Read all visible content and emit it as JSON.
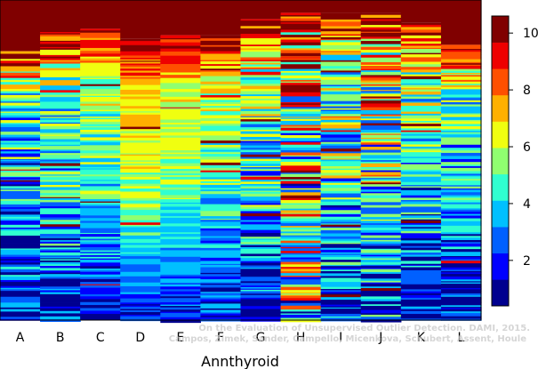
{
  "chart_data": {
    "type": "heatmap",
    "xlabel": "Annthyroid",
    "categories": [
      "A",
      "B",
      "C",
      "D",
      "E",
      "F",
      "G",
      "H",
      "I",
      "J",
      "K",
      "L"
    ],
    "colorbar": {
      "range": [
        0.4,
        10.6
      ],
      "ticks": [
        2,
        4,
        6,
        8,
        10
      ],
      "tick_labels": [
        "2",
        "4",
        "6",
        "8",
        "10"
      ],
      "colors": [
        "#00008F",
        "#0000FF",
        "#0060FF",
        "#00C0FF",
        "#30FFD0",
        "#90FF70",
        "#F0FF10",
        "#FFB000",
        "#FF5000",
        "#EE0000",
        "#800000"
      ]
    },
    "column_profiles": [
      {
        "name": "A",
        "top_rank": 9.2,
        "start": 0.16,
        "mid_rank": 3.0,
        "bottom_rank": 1.2,
        "noise": 2.5,
        "redness": 0.05
      },
      {
        "name": "B",
        "top_rank": 9.8,
        "start": 0.1,
        "mid_rank": 3.8,
        "bottom_rank": 1.3,
        "noise": 2.4,
        "redness": 0.07
      },
      {
        "name": "C",
        "top_rank": 9.8,
        "start": 0.09,
        "mid_rank": 4.5,
        "bottom_rank": 1.5,
        "noise": 1.7,
        "redness": 0.05
      },
      {
        "name": "D",
        "top_rank": 9.9,
        "start": 0.12,
        "mid_rank": 5.5,
        "bottom_rank": 1.8,
        "noise": 1.1,
        "redness": 0.03
      },
      {
        "name": "E",
        "top_rank": 9.9,
        "start": 0.11,
        "mid_rank": 5.0,
        "bottom_rank": 1.7,
        "noise": 1.2,
        "redness": 0.03
      },
      {
        "name": "F",
        "top_rank": 9.7,
        "start": 0.11,
        "mid_rank": 4.6,
        "bottom_rank": 1.6,
        "noise": 1.6,
        "redness": 0.04
      },
      {
        "name": "G",
        "top_rank": 9.8,
        "start": 0.06,
        "mid_rank": 4.0,
        "bottom_rank": 1.4,
        "noise": 2.5,
        "redness": 0.1
      },
      {
        "name": "H",
        "top_rank": 9.6,
        "start": 0.04,
        "mid_rank": 5.0,
        "bottom_rank": 4.5,
        "noise": 4.0,
        "redness": 0.25
      },
      {
        "name": "I",
        "top_rank": 9.9,
        "start": 0.04,
        "mid_rank": 4.2,
        "bottom_rank": 1.5,
        "noise": 3.0,
        "redness": 0.1
      },
      {
        "name": "J",
        "top_rank": 9.8,
        "start": 0.04,
        "mid_rank": 4.6,
        "bottom_rank": 2.0,
        "noise": 3.2,
        "redness": 0.18
      },
      {
        "name": "K",
        "top_rank": 9.7,
        "start": 0.07,
        "mid_rank": 3.7,
        "bottom_rank": 1.4,
        "noise": 2.6,
        "redness": 0.09
      },
      {
        "name": "L",
        "top_rank": 9.6,
        "start": 0.14,
        "mid_rank": 3.4,
        "bottom_rank": 1.2,
        "noise": 2.3,
        "redness": 0.05
      }
    ]
  },
  "credit": {
    "line1": "On the Evaluation of Unsupervised Outlier Detection. DAMI, 2015.",
    "line2": "Campos, Zimek, Sander, Campello, Micenkova, Schubert, Assent, Houle"
  }
}
